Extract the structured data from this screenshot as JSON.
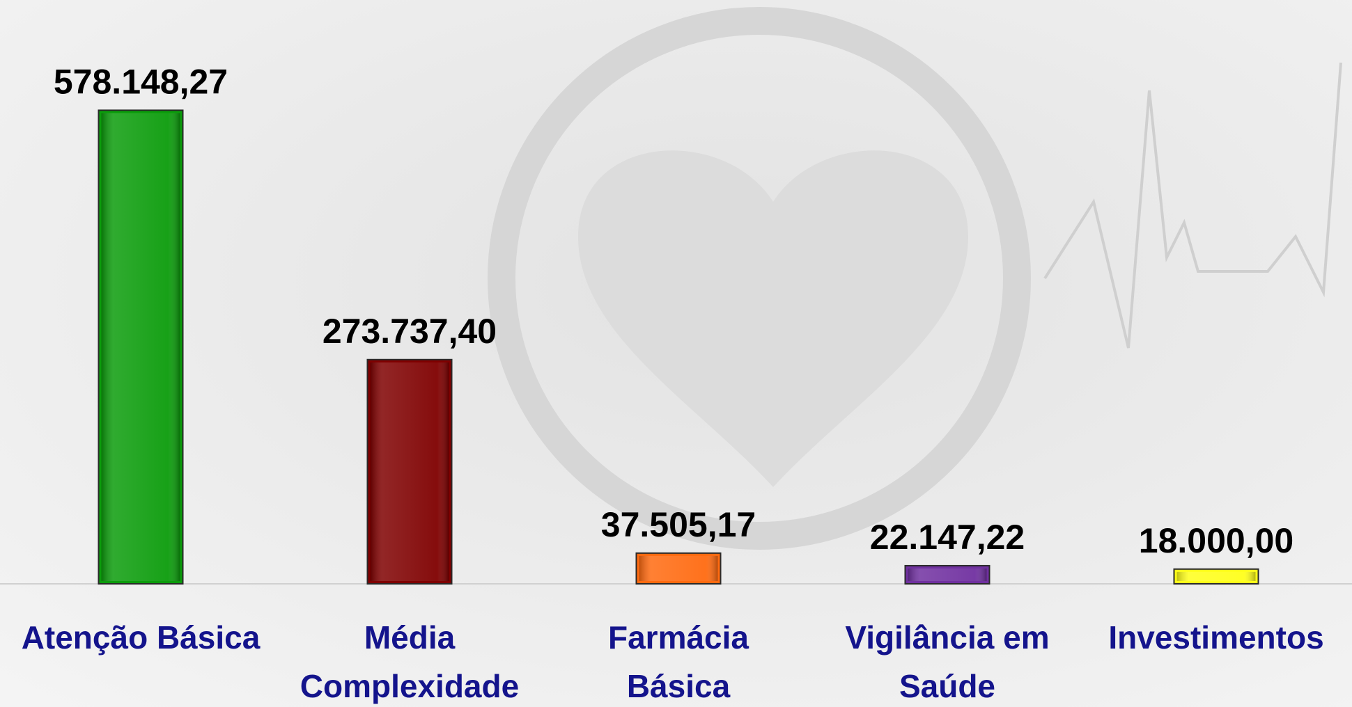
{
  "chart_data": {
    "type": "bar",
    "categories": [
      [
        "Atenção Básica"
      ],
      [
        "Média",
        "Complexidade"
      ],
      [
        "Farmácia",
        "Básica"
      ],
      [
        "Vigilância em",
        "Saúde"
      ],
      [
        "Investimentos"
      ]
    ],
    "values": [
      578148.27,
      273737.4,
      37505.17,
      22147.22,
      18000.0
    ],
    "value_labels": [
      "578.148,27",
      "273.737,40",
      "37.505,17",
      "22.147,22",
      "18.000,00"
    ],
    "colors": [
      "#0b9c0b",
      "#7f0000",
      "#ff6a10",
      "#7030a0",
      "#ffff1a"
    ],
    "ylim": [
      0,
      700000
    ]
  }
}
